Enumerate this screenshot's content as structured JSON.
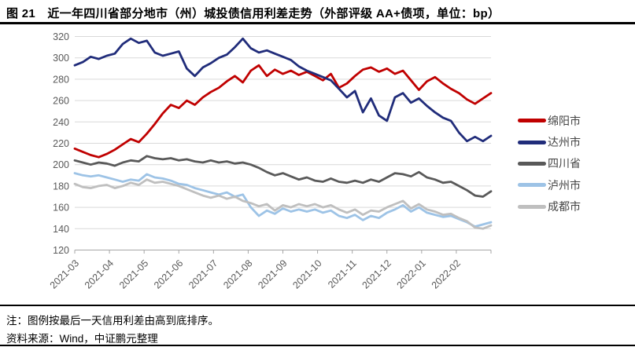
{
  "title": "图 21　近一年四川省部分地市（州）城投债信用利差走势（外部评级 AA+债项，单位：bp）",
  "notes": {
    "note": "注：图例按最后一天信用利差由高到底排序。",
    "source": "资料来源：Wind，中证鹏元整理"
  },
  "colors": {
    "gridline": "#d9d9d9",
    "axis_line": "#a6a6a6",
    "tick_label": "#595959",
    "title_text": "#000000",
    "legend_text": "#444444"
  },
  "chart_data": {
    "type": "line",
    "title": "近一年四川省部分地市（州）城投债信用利差走势（外部评级 AA+债项，单位：bp）",
    "unit": "bp",
    "xlabel": "",
    "ylabel": "",
    "ylim": [
      120,
      320
    ],
    "yticks": [
      120,
      140,
      160,
      180,
      200,
      220,
      240,
      260,
      280,
      300,
      320
    ],
    "x_labels": [
      "2021-03",
      "2021-04",
      "2021-05",
      "2021-06",
      "2021-07",
      "2021-08",
      "2021-09",
      "2021-10",
      "2021-11",
      "2021-12",
      "2022-01",
      "2022-02"
    ],
    "grid": "horizontal",
    "legend_position": "right",
    "points_per_series": 53,
    "sampling": "weekly",
    "series": [
      {
        "name": "绵阳市",
        "color": "#c00000",
        "values": [
          215,
          212,
          209,
          207,
          210,
          214,
          219,
          224,
          221,
          229,
          238,
          248,
          256,
          253,
          260,
          256,
          263,
          268,
          272,
          278,
          283,
          277,
          288,
          293,
          283,
          289,
          285,
          288,
          284,
          287,
          283,
          279,
          285,
          272,
          276,
          283,
          289,
          291,
          287,
          290,
          285,
          288,
          279,
          270,
          278,
          282,
          276,
          271,
          267,
          261,
          257,
          262,
          267
        ]
      },
      {
        "name": "达州市",
        "color": "#202c7a",
        "values": [
          293,
          296,
          301,
          299,
          302,
          304,
          313,
          318,
          314,
          316,
          305,
          302,
          304,
          306,
          290,
          283,
          291,
          295,
          300,
          303,
          310,
          318,
          309,
          305,
          307,
          304,
          301,
          298,
          292,
          288,
          285,
          282,
          279,
          271,
          263,
          269,
          249,
          262,
          246,
          241,
          263,
          267,
          258,
          262,
          255,
          249,
          244,
          241,
          230,
          222,
          226,
          222,
          227
        ]
      },
      {
        "name": "四川省",
        "color": "#595959",
        "values": [
          204,
          202,
          200,
          202,
          201,
          199,
          202,
          204,
          203,
          208,
          206,
          205,
          206,
          204,
          205,
          203,
          202,
          204,
          202,
          203,
          201,
          202,
          200,
          197,
          193,
          190,
          192,
          189,
          186,
          188,
          185,
          184,
          187,
          184,
          183,
          185,
          183,
          186,
          184,
          188,
          192,
          191,
          189,
          193,
          188,
          186,
          183,
          184,
          180,
          176,
          171,
          170,
          175
        ]
      },
      {
        "name": "泸州市",
        "color": "#9dc3e6",
        "values": [
          192,
          190,
          189,
          190,
          188,
          186,
          184,
          186,
          185,
          191,
          188,
          187,
          185,
          182,
          181,
          178,
          176,
          174,
          172,
          174,
          170,
          172,
          160,
          152,
          157,
          154,
          159,
          156,
          158,
          156,
          158,
          155,
          157,
          152,
          150,
          153,
          148,
          152,
          150,
          155,
          158,
          162,
          156,
          160,
          155,
          153,
          151,
          152,
          149,
          146,
          142,
          144,
          146
        ]
      },
      {
        "name": "成都市",
        "color": "#bfbfbf",
        "values": [
          182,
          179,
          178,
          180,
          181,
          178,
          180,
          183,
          181,
          186,
          183,
          184,
          182,
          180,
          177,
          174,
          171,
          169,
          171,
          168,
          170,
          166,
          164,
          161,
          163,
          157,
          162,
          160,
          163,
          161,
          163,
          160,
          162,
          158,
          155,
          158,
          153,
          157,
          156,
          160,
          163,
          166,
          159,
          163,
          158,
          156,
          153,
          154,
          150,
          147,
          141,
          140,
          143
        ]
      }
    ]
  }
}
